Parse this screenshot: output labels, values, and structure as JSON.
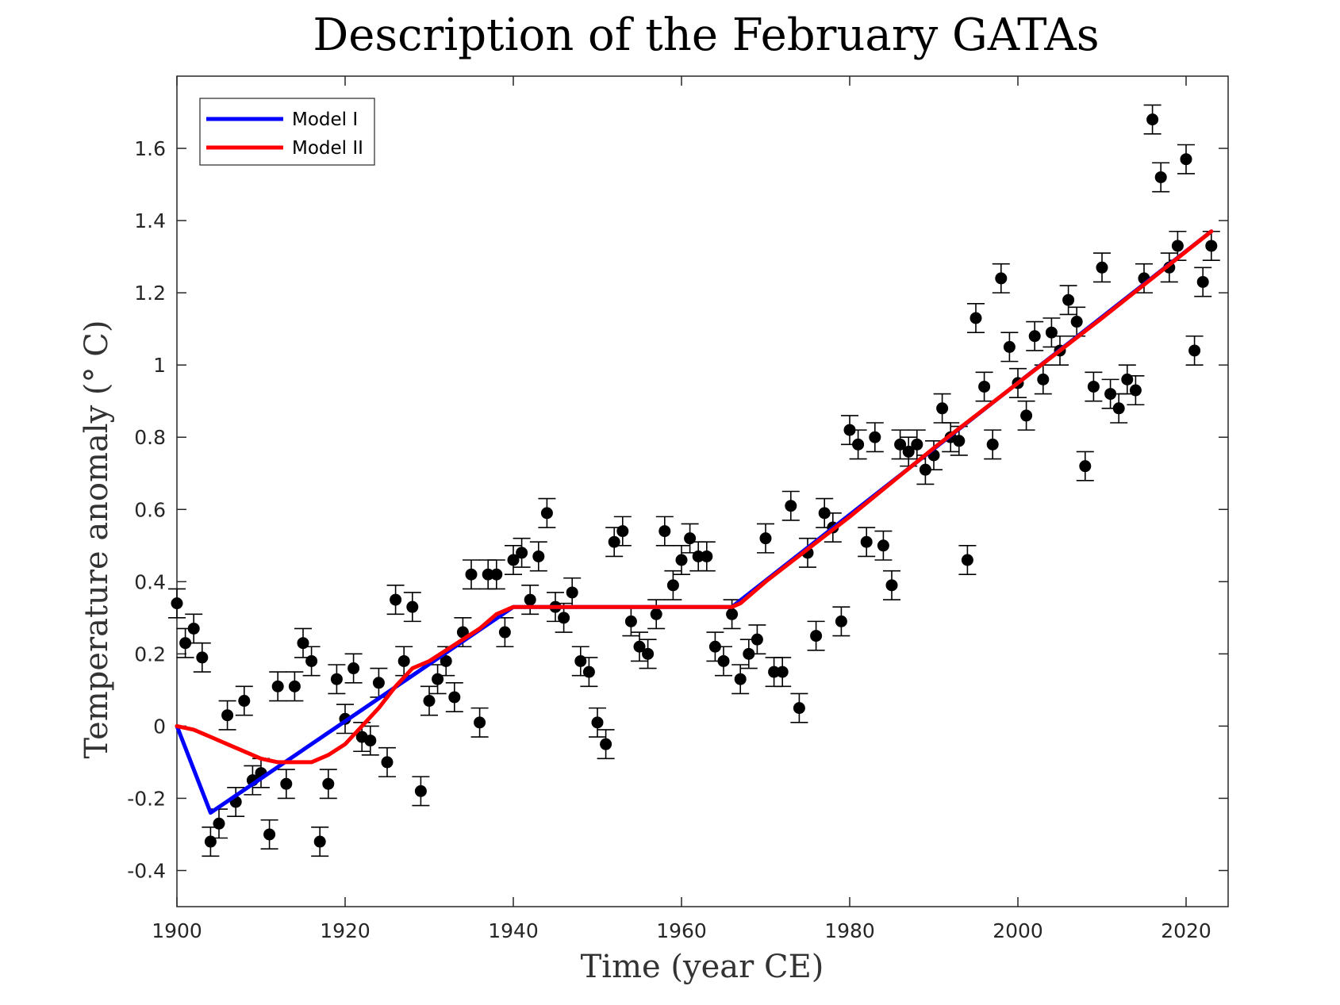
{
  "chart_data": {
    "type": "scatter",
    "title": "Description of the February GATAs",
    "xlabel": "Time (year CE)",
    "ylabel": "Temperature anomaly (° C)",
    "xlim": [
      1900,
      2025
    ],
    "ylim": [
      -0.5,
      1.8
    ],
    "xticks": [
      1900,
      1920,
      1940,
      1960,
      1980,
      2000,
      2020
    ],
    "yticks": [
      -0.4,
      -0.2,
      0,
      0.2,
      0.4,
      0.6,
      0.8,
      1,
      1.2,
      1.4,
      1.6
    ],
    "ytick_labels": [
      "-0.4",
      "-0.2",
      "0",
      "0.2",
      "0.4",
      "0.6",
      "0.8",
      "1",
      "1.2",
      "1.4",
      "1.6"
    ],
    "grid": false,
    "legend_position": "top-left",
    "legend": [
      {
        "name": "Model I",
        "color": "#0000ff"
      },
      {
        "name": "Model II",
        "color": "#ff0000"
      }
    ],
    "error_bar": 0.04,
    "observations": {
      "x": [
        1900,
        1901,
        1902,
        1903,
        1904,
        1905,
        1906,
        1907,
        1908,
        1909,
        1910,
        1911,
        1912,
        1913,
        1914,
        1915,
        1916,
        1917,
        1918,
        1919,
        1920,
        1921,
        1922,
        1923,
        1924,
        1925,
        1926,
        1927,
        1928,
        1929,
        1930,
        1931,
        1932,
        1933,
        1934,
        1935,
        1936,
        1937,
        1938,
        1939,
        1940,
        1941,
        1942,
        1943,
        1944,
        1945,
        1946,
        1947,
        1948,
        1949,
        1950,
        1951,
        1952,
        1953,
        1954,
        1955,
        1956,
        1957,
        1958,
        1959,
        1960,
        1961,
        1962,
        1963,
        1964,
        1965,
        1966,
        1967,
        1968,
        1969,
        1970,
        1971,
        1972,
        1973,
        1974,
        1975,
        1976,
        1977,
        1978,
        1979,
        1980,
        1981,
        1982,
        1983,
        1984,
        1985,
        1986,
        1987,
        1988,
        1989,
        1990,
        1991,
        1992,
        1993,
        1994,
        1995,
        1996,
        1997,
        1998,
        1999,
        2000,
        2001,
        2002,
        2003,
        2004,
        2005,
        2006,
        2007,
        2008,
        2009,
        2010,
        2011,
        2012,
        2013,
        2014,
        2015,
        2016,
        2017,
        2018,
        2019,
        2020,
        2021,
        2022,
        2023
      ],
      "y": [
        0.34,
        0.23,
        0.27,
        0.19,
        -0.32,
        -0.27,
        0.03,
        -0.21,
        0.07,
        -0.15,
        -0.13,
        -0.3,
        0.11,
        -0.16,
        0.11,
        0.23,
        0.18,
        -0.32,
        -0.16,
        0.13,
        0.02,
        0.16,
        -0.03,
        -0.04,
        0.12,
        -0.1,
        0.35,
        0.18,
        0.33,
        -0.18,
        0.07,
        0.13,
        0.18,
        0.08,
        0.26,
        0.42,
        0.01,
        0.42,
        0.42,
        0.26,
        0.46,
        0.48,
        0.35,
        0.47,
        0.59,
        0.33,
        0.3,
        0.37,
        0.18,
        0.15,
        0.01,
        -0.05,
        0.51,
        0.54,
        0.29,
        0.22,
        0.2,
        0.31,
        0.54,
        0.39,
        0.46,
        0.52,
        0.47,
        0.47,
        0.22,
        0.18,
        0.31,
        0.13,
        0.2,
        0.24,
        0.52,
        0.15,
        0.15,
        0.61,
        0.05,
        0.48,
        0.25,
        0.59,
        0.55,
        0.29,
        0.82,
        0.78,
        0.51,
        0.8,
        0.5,
        0.39,
        0.78,
        0.76,
        0.78,
        0.71,
        0.75,
        0.88,
        0.8,
        0.79,
        0.46,
        1.13,
        0.94,
        0.78,
        1.24,
        1.05,
        0.95,
        0.86,
        1.08,
        0.96,
        1.09,
        1.04,
        1.18,
        1.12,
        0.72,
        0.94,
        1.27,
        0.92,
        0.88,
        0.96,
        0.93,
        1.24,
        1.68,
        1.52,
        1.27,
        1.33,
        1.57,
        1.04,
        1.23,
        1.33
      ]
    },
    "series": [
      {
        "name": "Model I",
        "color": "#0000ff",
        "x": [
          1900,
          1904,
          1940,
          1966,
          2023
        ],
        "y": [
          0,
          -0.24,
          0.33,
          0.33,
          1.37
        ]
      },
      {
        "name": "Model II",
        "color": "#ff0000",
        "x": [
          1900,
          1902,
          1904,
          1906,
          1908,
          1910,
          1912,
          1914,
          1916,
          1918,
          1920,
          1922,
          1924,
          1926,
          1928,
          1930,
          1932,
          1934,
          1936,
          1938,
          1940,
          1942,
          1950,
          1960,
          1966,
          1967,
          1970,
          1980,
          1990,
          2000,
          2010,
          2023
        ],
        "y": [
          0,
          -0.01,
          -0.03,
          -0.05,
          -0.07,
          -0.09,
          -0.1,
          -0.1,
          -0.1,
          -0.08,
          -0.05,
          0.0,
          0.05,
          0.11,
          0.16,
          0.18,
          0.21,
          0.24,
          0.27,
          0.31,
          0.33,
          0.33,
          0.33,
          0.33,
          0.33,
          0.34,
          0.4,
          0.58,
          0.77,
          0.95,
          1.13,
          1.37
        ]
      }
    ]
  }
}
